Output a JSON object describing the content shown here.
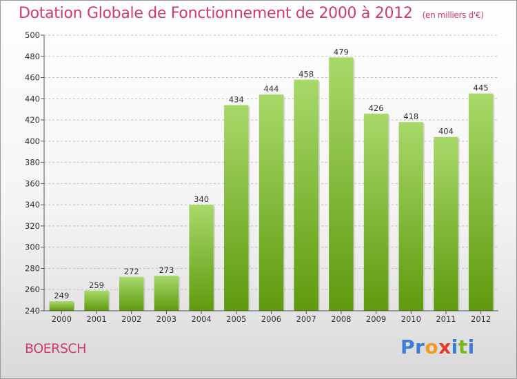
{
  "title": "Dotation Globale de Fonctionnement de 2000 à 2012",
  "subtitle": "(en milliers d'€)",
  "location": "BOERSCH",
  "logo": {
    "text": "Proxiti",
    "colors": [
      "#3a7fd5",
      "#3a7fd5",
      "#f29a1f",
      "#e23b2c",
      "#3a7fd5",
      "#7bb51c",
      "#3a7fd5"
    ]
  },
  "colors": {
    "bar_top": "#a8d96a",
    "bar_bottom": "#5f9a0e",
    "title": "#d13b6a",
    "grid": "#bfbfbf"
  },
  "chart_data": {
    "type": "bar",
    "categories": [
      "2000",
      "2001",
      "2002",
      "2003",
      "2004",
      "2005",
      "2006",
      "2007",
      "2008",
      "2009",
      "2010",
      "2011",
      "2012"
    ],
    "values": [
      249,
      259,
      272,
      273,
      340,
      434,
      444,
      458,
      479,
      426,
      418,
      404,
      445
    ],
    "title": "Dotation Globale de Fonctionnement de 2000 à 2012",
    "ylim": [
      240,
      500
    ],
    "yticks": [
      240,
      260,
      280,
      300,
      320,
      340,
      360,
      380,
      400,
      420,
      440,
      460,
      480,
      500
    ],
    "grid": true,
    "data_labels": true
  }
}
